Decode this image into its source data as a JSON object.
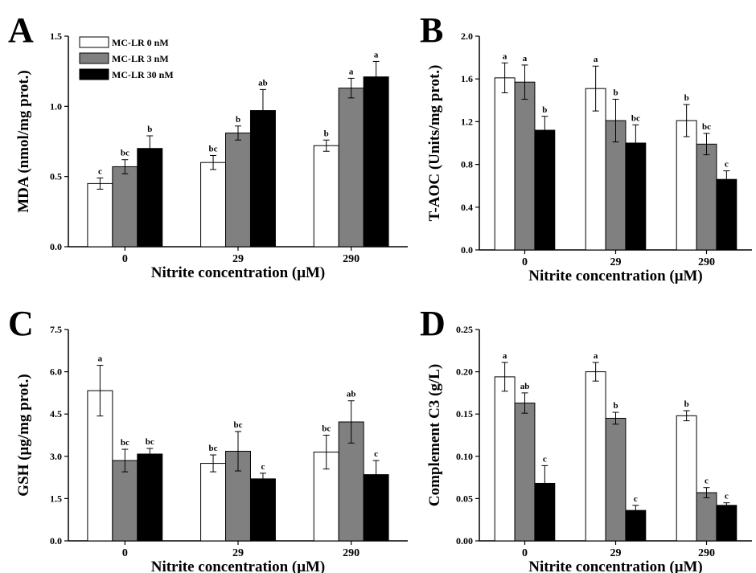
{
  "legend": {
    "entries": [
      "MC-LR 0 nM",
      "MC-LR 3 nM",
      "MC-LR 30 nM"
    ]
  },
  "colors": {
    "MC-LR 0 nM": "#ffffff",
    "MC-LR 3 nM": "#808080",
    "MC-LR 30 nM": "#000000"
  },
  "chart_data": [
    {
      "panel": "A",
      "type": "bar",
      "xlabel": "Nitrite concentration (μM)",
      "ylabel": "MDA (nmol/mg prot.)",
      "categories": [
        "0",
        "29",
        "290"
      ],
      "ylim": [
        0,
        1.5
      ],
      "yticks": [
        "0.0",
        "0.5",
        "1.0",
        "1.5"
      ],
      "legend_position": "top-left",
      "series": [
        {
          "name": "MC-LR 0 nM",
          "values": [
            0.45,
            0.6,
            0.72
          ],
          "errors": [
            0.04,
            0.05,
            0.04
          ],
          "labels": [
            "c",
            "bc",
            "b"
          ]
        },
        {
          "name": "MC-LR 3 nM",
          "values": [
            0.57,
            0.81,
            1.13
          ],
          "errors": [
            0.05,
            0.05,
            0.07
          ],
          "labels": [
            "bc",
            "b",
            "a"
          ]
        },
        {
          "name": "MC-LR 30 nM",
          "values": [
            0.7,
            0.97,
            1.21
          ],
          "errors": [
            0.09,
            0.15,
            0.11
          ],
          "labels": [
            "b",
            "ab",
            "a"
          ]
        }
      ]
    },
    {
      "panel": "B",
      "type": "bar",
      "xlabel": "Nitrite concentration (μM)",
      "ylabel": "T-AOC (Units/mg prot.)",
      "categories": [
        "0",
        "29",
        "290"
      ],
      "ylim": [
        0,
        2.0
      ],
      "yticks": [
        "0.0",
        "0.4",
        "0.8",
        "1.2",
        "1.6",
        "2.0"
      ],
      "series": [
        {
          "name": "MC-LR 0 nM",
          "values": [
            1.61,
            1.51,
            1.21
          ],
          "errors": [
            0.14,
            0.21,
            0.15
          ],
          "labels": [
            "a",
            "a",
            "b"
          ]
        },
        {
          "name": "MC-LR 3 nM",
          "values": [
            1.57,
            1.21,
            0.99
          ],
          "errors": [
            0.16,
            0.2,
            0.1
          ],
          "labels": [
            "a",
            "b",
            "bc"
          ]
        },
        {
          "name": "MC-LR 30 nM",
          "values": [
            1.12,
            1.0,
            0.66
          ],
          "errors": [
            0.13,
            0.17,
            0.08
          ],
          "labels": [
            "b",
            "bc",
            "c"
          ]
        }
      ]
    },
    {
      "panel": "C",
      "type": "bar",
      "xlabel": "Nitrite concentration (μM)",
      "ylabel": "GSH (μg/mg prot.)",
      "categories": [
        "0",
        "29",
        "290"
      ],
      "ylim": [
        0,
        7.5
      ],
      "yticks": [
        "0.0",
        "1.5",
        "3.0",
        "4.5",
        "6.0",
        "7.5"
      ],
      "series": [
        {
          "name": "MC-LR 0 nM",
          "values": [
            5.33,
            2.75,
            3.15
          ],
          "errors": [
            0.9,
            0.3,
            0.6
          ],
          "labels": [
            "a",
            "bc",
            "bc"
          ]
        },
        {
          "name": "MC-LR 3 nM",
          "values": [
            2.85,
            3.18,
            4.22
          ],
          "errors": [
            0.4,
            0.7,
            0.75
          ],
          "labels": [
            "bc",
            "bc",
            "ab"
          ]
        },
        {
          "name": "MC-LR 30 nM",
          "values": [
            3.08,
            2.2,
            2.35
          ],
          "errors": [
            0.2,
            0.2,
            0.5
          ],
          "labels": [
            "bc",
            "c",
            "c"
          ]
        }
      ]
    },
    {
      "panel": "D",
      "type": "bar",
      "xlabel": "Nitrite concentration (μM)",
      "ylabel": "Complement C3 (g/L)",
      "categories": [
        "0",
        "29",
        "290"
      ],
      "ylim": [
        0,
        0.25
      ],
      "yticks": [
        "0.00",
        "0.05",
        "0.10",
        "0.15",
        "0.20",
        "0.25"
      ],
      "series": [
        {
          "name": "MC-LR 0 nM",
          "values": [
            0.194,
            0.2,
            0.148
          ],
          "errors": [
            0.017,
            0.011,
            0.006
          ],
          "labels": [
            "a",
            "a",
            "b"
          ]
        },
        {
          "name": "MC-LR 3 nM",
          "values": [
            0.163,
            0.145,
            0.057
          ],
          "errors": [
            0.012,
            0.007,
            0.006
          ],
          "labels": [
            "ab",
            "b",
            "c"
          ]
        },
        {
          "name": "MC-LR 30 nM",
          "values": [
            0.068,
            0.036,
            0.042
          ],
          "errors": [
            0.021,
            0.006,
            0.003
          ],
          "labels": [
            "c",
            "c",
            "c"
          ]
        }
      ]
    }
  ]
}
